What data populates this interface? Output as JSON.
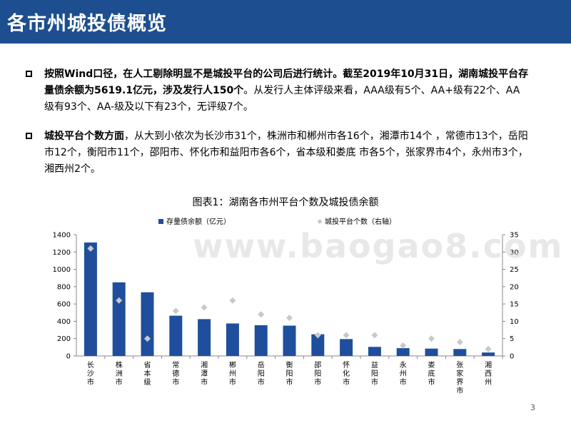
{
  "header": {
    "title": "各市州城投债概览"
  },
  "bullets": [
    {
      "p1": "按照Wind口径，在人工剔除明显不是城投平台的公司后进行统计。截至2019年10月31日，湖南城投平台存量债余额为5619.1亿元，涉及发行人150个",
      "p2": "。从发行人主体评级来看，AAA级有5个、AA+级有22个、AA级有93个、AA-级及以下有23个，无评级7个。"
    },
    {
      "p1": "城投平台个数方面",
      "p2": "，从大到小依次为长沙市31个，株洲市和郴州市各16个，湘潭市14个 ，常德市13个，岳阳市12个，衡阳市11个，邵阳市、怀化市和益阳市各6个，省本级和娄底 市各5个，张家界市4个，永州市3个，湘西州2个。"
    }
  ],
  "watermark": "www.baogao8.com",
  "page_number": "3",
  "colors": {
    "title_bar": "#1d4e8f",
    "bar": "#1f4f9c",
    "marker": "#c8c8c8"
  },
  "chart_data": {
    "type": "bar",
    "title": "图表1：湖南各市州平台个数及城投债余额",
    "categories": [
      "长沙市",
      "株洲市",
      "省本级",
      "常德市",
      "湘潭市",
      "郴州市",
      "岳阳市",
      "衡阳市",
      "邵阳市",
      "怀化市",
      "益阳市",
      "永州市",
      "娄底市",
      "张家界市",
      "湘西州"
    ],
    "series": [
      {
        "name": "存量债余额（亿元）",
        "type": "bar",
        "axis": "left",
        "values": [
          1310,
          850,
          735,
          465,
          425,
          375,
          355,
          350,
          250,
          195,
          105,
          90,
          85,
          80,
          40
        ]
      },
      {
        "name": "城投平台个数（右轴）",
        "type": "scatter",
        "axis": "right",
        "values": [
          31,
          16,
          5,
          13,
          14,
          16,
          12,
          11,
          6,
          6,
          6,
          3,
          5,
          4,
          2
        ]
      }
    ],
    "ylim_left": [
      0,
      1400
    ],
    "yticks_left": [
      0,
      200,
      400,
      600,
      800,
      1000,
      1200,
      1400
    ],
    "ylim_right": [
      0,
      35
    ],
    "yticks_right": [
      0,
      5,
      10,
      15,
      20,
      25,
      30,
      35
    ],
    "legend": "top-center",
    "grid": false
  }
}
